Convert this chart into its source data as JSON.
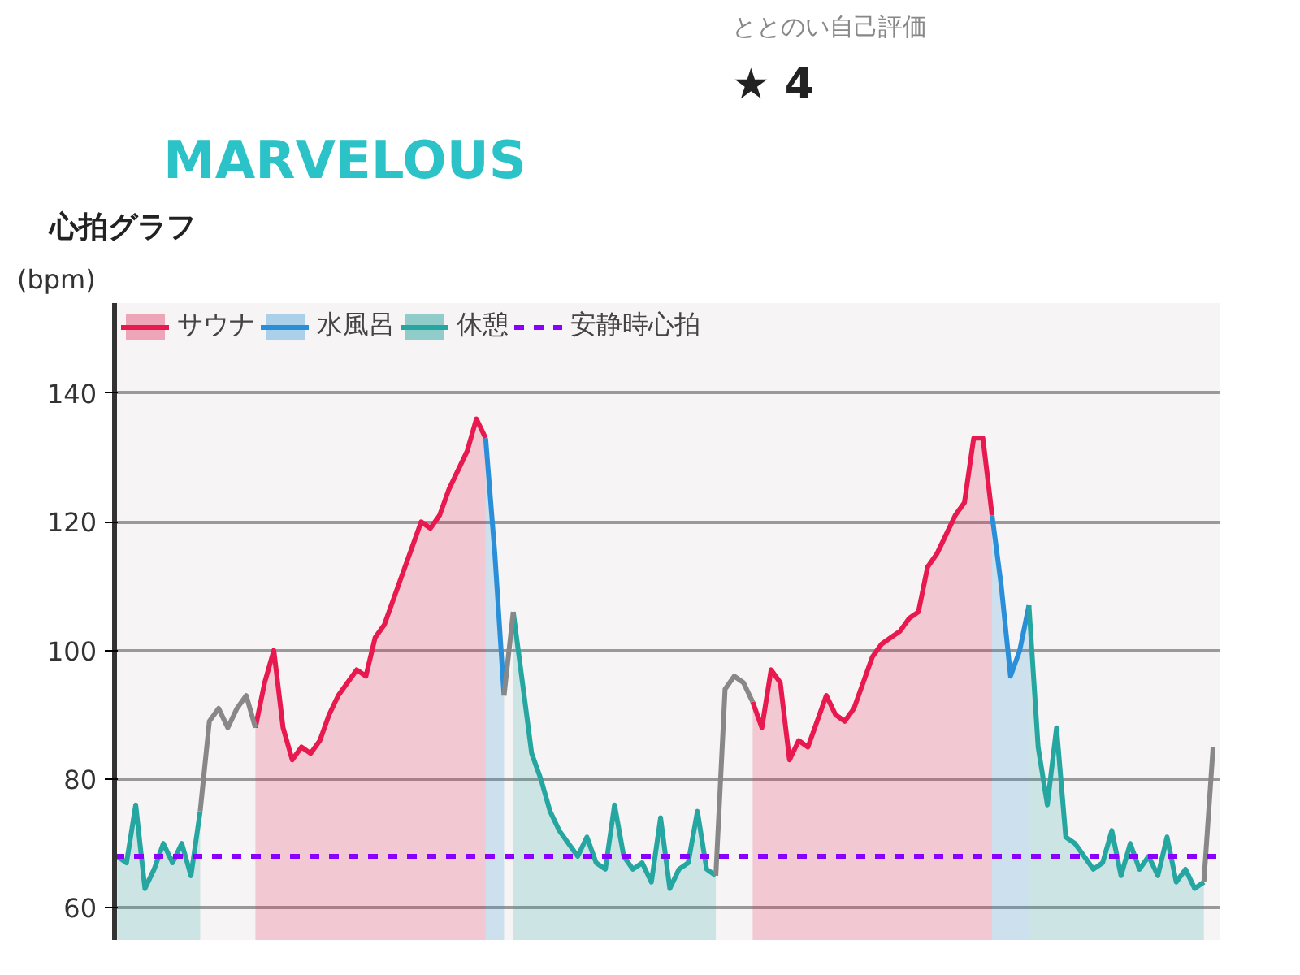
{
  "chart_data": {
    "type": "area",
    "title": "心拍グラフ",
    "ylabel": "(bpm)",
    "annotations": [
      "MARVELOUS",
      "ととのい自己評価",
      "★ 4"
    ],
    "categories": [
      null,
      null,
      null,
      null,
      null,
      null,
      null,
      null,
      null,
      null,
      null,
      null,
      null,
      null,
      null,
      null,
      null,
      null,
      null,
      null,
      null,
      null,
      null,
      null,
      null,
      null,
      null,
      null,
      null,
      null,
      null,
      null,
      null,
      null,
      null,
      null,
      null,
      null,
      null,
      null,
      null,
      null,
      null,
      null,
      null,
      null,
      null,
      null,
      null,
      null,
      null,
      null,
      null,
      null,
      null,
      null,
      null,
      null,
      null,
      null,
      null,
      null,
      null,
      null,
      null,
      null,
      null,
      null,
      null,
      null,
      null,
      null,
      null,
      null,
      null,
      null,
      null,
      null,
      null,
      null,
      null,
      null,
      null,
      null,
      null,
      null,
      null,
      null,
      null,
      null,
      null,
      null,
      null,
      null,
      null,
      null,
      null,
      null,
      null,
      null,
      null,
      null,
      null,
      null,
      null,
      null,
      null,
      null,
      null,
      null,
      null,
      null,
      null,
      null,
      null,
      null,
      null,
      null,
      null,
      null
    ],
    "series": [
      {
        "name": "サウナ",
        "color": "#e8194f",
        "values": [
          null,
          null,
          null,
          null,
          null,
          null,
          null,
          null,
          null,
          null,
          null,
          null,
          null,
          null,
          null,
          88,
          95,
          100,
          88,
          83,
          85,
          84,
          86,
          90,
          93,
          95,
          97,
          96,
          102,
          104,
          108,
          112,
          116,
          120,
          119,
          121,
          125,
          128,
          131,
          136,
          133,
          null,
          null,
          null,
          null,
          null,
          null,
          null,
          null,
          null,
          null,
          null,
          null,
          null,
          null,
          null,
          null,
          null,
          null,
          null,
          null,
          null,
          null,
          null,
          null,
          null,
          null,
          null,
          null,
          92,
          88,
          97,
          95,
          83,
          86,
          85,
          89,
          93,
          90,
          89,
          91,
          95,
          99,
          101,
          102,
          103,
          105,
          106,
          113,
          115,
          118,
          121,
          123,
          133,
          133,
          121,
          null,
          null,
          null,
          null,
          null,
          null,
          null,
          null,
          null,
          null,
          null,
          null,
          null,
          null,
          null,
          null,
          null,
          null,
          null,
          null,
          null,
          null,
          null,
          null
        ]
      },
      {
        "name": "水風呂",
        "color": "#2a8fd8",
        "values": [
          null,
          null,
          null,
          null,
          null,
          null,
          null,
          null,
          null,
          null,
          null,
          null,
          null,
          null,
          null,
          null,
          null,
          null,
          null,
          null,
          null,
          null,
          null,
          null,
          null,
          null,
          null,
          null,
          null,
          null,
          null,
          null,
          null,
          null,
          null,
          null,
          null,
          null,
          null,
          null,
          133,
          115,
          93,
          null,
          null,
          null,
          null,
          null,
          null,
          null,
          null,
          null,
          null,
          null,
          null,
          null,
          null,
          null,
          null,
          null,
          null,
          null,
          null,
          null,
          null,
          null,
          null,
          null,
          null,
          null,
          null,
          null,
          null,
          null,
          null,
          null,
          null,
          null,
          null,
          null,
          null,
          null,
          null,
          null,
          null,
          null,
          null,
          null,
          null,
          null,
          null,
          null,
          null,
          null,
          null,
          121,
          110,
          96,
          100,
          107,
          null,
          null,
          null,
          null,
          null,
          null,
          null,
          null,
          null,
          null,
          null,
          null,
          null,
          null,
          null,
          null,
          null,
          null,
          null,
          null
        ]
      },
      {
        "name": "休憩",
        "color": "#26a6a0",
        "values": [
          68,
          67,
          76,
          63,
          66,
          70,
          67,
          70,
          65,
          75,
          null,
          null,
          null,
          null,
          null,
          null,
          null,
          null,
          null,
          null,
          null,
          null,
          null,
          null,
          null,
          null,
          null,
          null,
          null,
          null,
          null,
          null,
          null,
          null,
          null,
          null,
          null,
          null,
          null,
          null,
          null,
          null,
          null,
          106,
          95,
          84,
          80,
          75,
          72,
          70,
          68,
          71,
          67,
          66,
          76,
          68,
          66,
          67,
          64,
          74,
          63,
          66,
          67,
          75,
          66,
          65,
          null,
          null,
          null,
          null,
          null,
          null,
          null,
          null,
          null,
          null,
          null,
          null,
          null,
          null,
          null,
          null,
          null,
          null,
          null,
          null,
          null,
          null,
          null,
          null,
          null,
          null,
          null,
          null,
          null,
          null,
          null,
          null,
          null,
          107,
          85,
          76,
          88,
          71,
          70,
          68,
          66,
          67,
          72,
          65,
          70,
          66,
          68,
          65,
          71,
          64,
          66,
          63,
          64,
          null
        ]
      },
      {
        "type": "line",
        "color": "#888888",
        "values": [
          null,
          null,
          null,
          null,
          null,
          null,
          null,
          null,
          null,
          75,
          89,
          91,
          88,
          91,
          93,
          88,
          null,
          null,
          null,
          null,
          null,
          null,
          null,
          null,
          null,
          null,
          null,
          null,
          null,
          null,
          null,
          null,
          null,
          null,
          null,
          null,
          null,
          null,
          null,
          null,
          null,
          null,
          93,
          106,
          null,
          null,
          null,
          null,
          null,
          null,
          null,
          null,
          null,
          null,
          null,
          null,
          null,
          null,
          null,
          null,
          null,
          null,
          null,
          null,
          null,
          65,
          94,
          96,
          95,
          92,
          null,
          null,
          null,
          null,
          null,
          null,
          null,
          null,
          null,
          null,
          null,
          null,
          null,
          null,
          null,
          null,
          null,
          null,
          null,
          null,
          null,
          null,
          null,
          null,
          null,
          null,
          null,
          null,
          null,
          null,
          null,
          null,
          null,
          null,
          null,
          null,
          null,
          null,
          null,
          null,
          null,
          null,
          null,
          null,
          null,
          null,
          null,
          null,
          64,
          85
        ]
      }
    ],
    "ref_lines": [
      {
        "axis": "y",
        "value": 68,
        "label": "安静時心拍",
        "color": "#8a00ff",
        "line_style": "dashed"
      }
    ],
    "ylim": [
      55,
      154
    ],
    "yticks": [
      60,
      80,
      100,
      120,
      140
    ],
    "grid": "y",
    "legend": "top left",
    "tick_labels": "y"
  }
}
